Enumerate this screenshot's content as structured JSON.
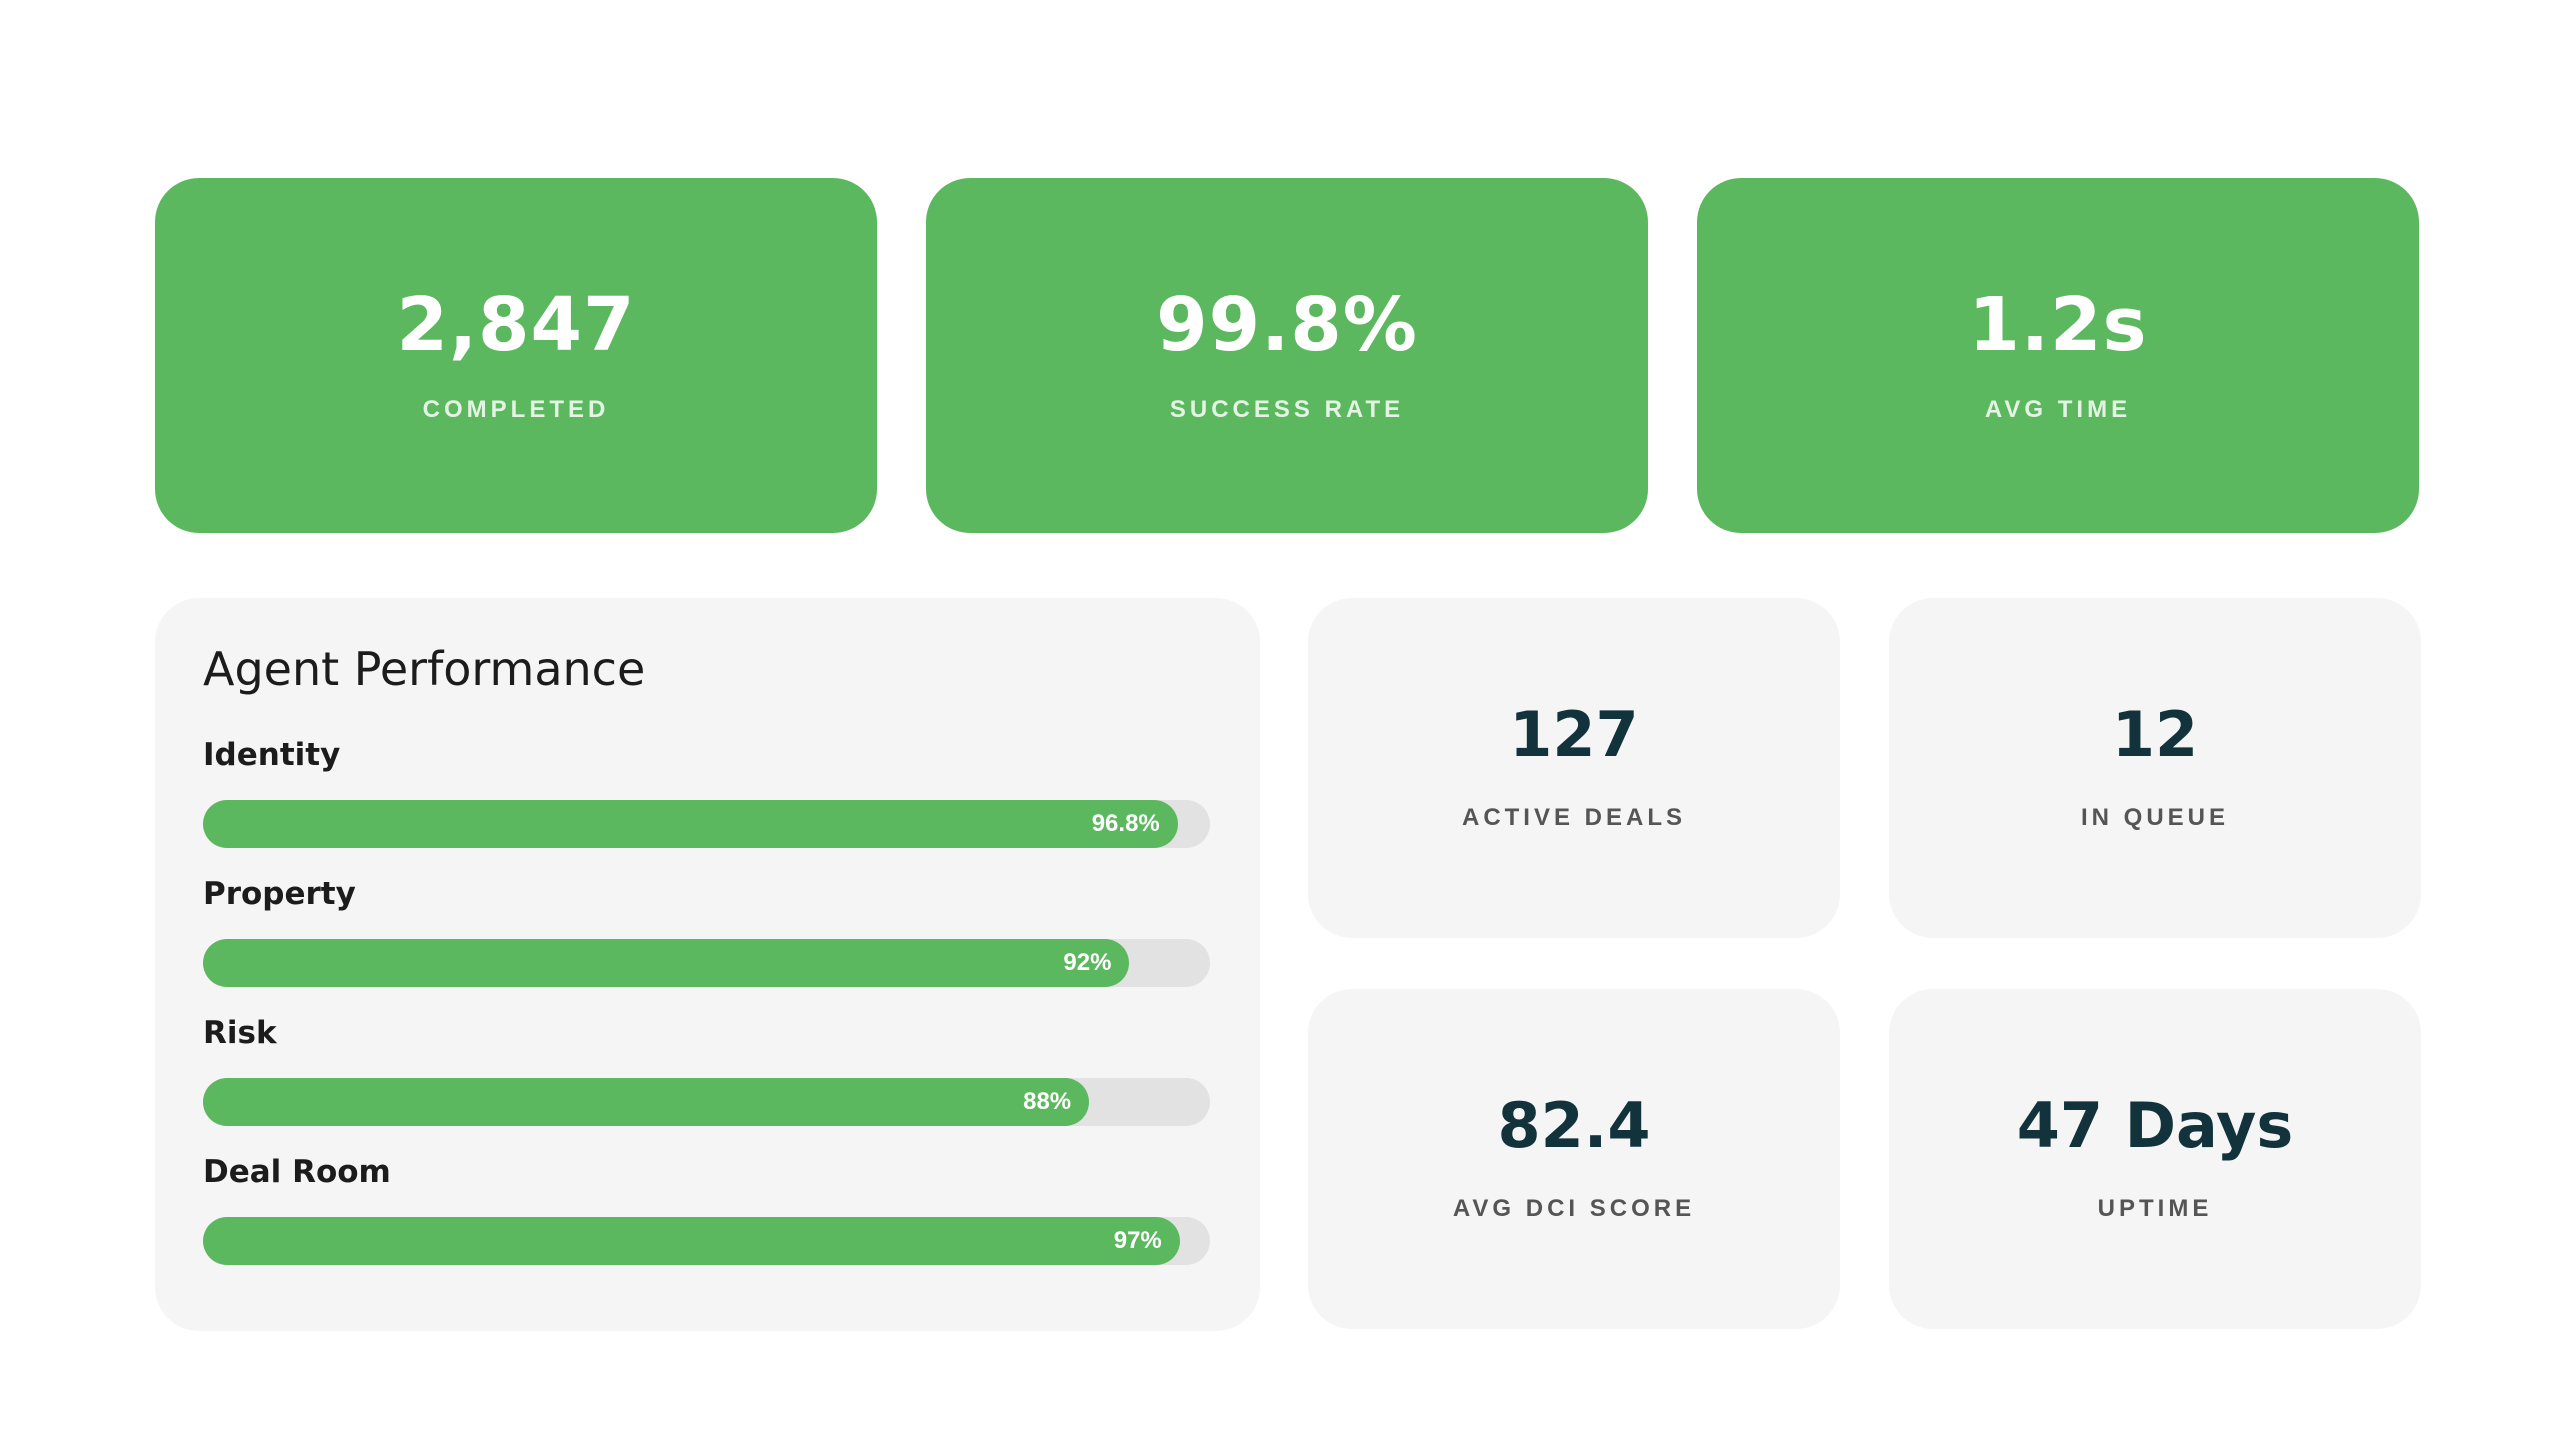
{
  "top_stats": [
    {
      "value": "2,847",
      "label": "COMPLETED"
    },
    {
      "value": "99.8%",
      "label": "SUCCESS RATE"
    },
    {
      "value": "1.2s",
      "label": "AVG TIME"
    }
  ],
  "agent_performance": {
    "title": "Agent Performance",
    "metrics": [
      {
        "name": "Identity",
        "value_label": "96.8%",
        "percent": 96.8
      },
      {
        "name": "Property",
        "value_label": "92%",
        "percent": 92
      },
      {
        "name": "Risk",
        "value_label": "88%",
        "percent": 88
      },
      {
        "name": "Deal Room",
        "value_label": "97%",
        "percent": 97
      }
    ]
  },
  "side_stats": {
    "active_deals": {
      "value": "127",
      "label": "ACTIVE DEALS"
    },
    "in_queue": {
      "value": "12",
      "label": "IN QUEUE"
    },
    "avg_dci": {
      "value": "82.4",
      "label": "AVG DCI SCORE"
    },
    "uptime": {
      "value": "47 Days",
      "label": "UPTIME"
    }
  },
  "colors": {
    "accent_green": "#5cb85f",
    "card_gray": "#f5f5f5",
    "track_gray": "#e2e2e2",
    "dark_value": "#12333c"
  }
}
